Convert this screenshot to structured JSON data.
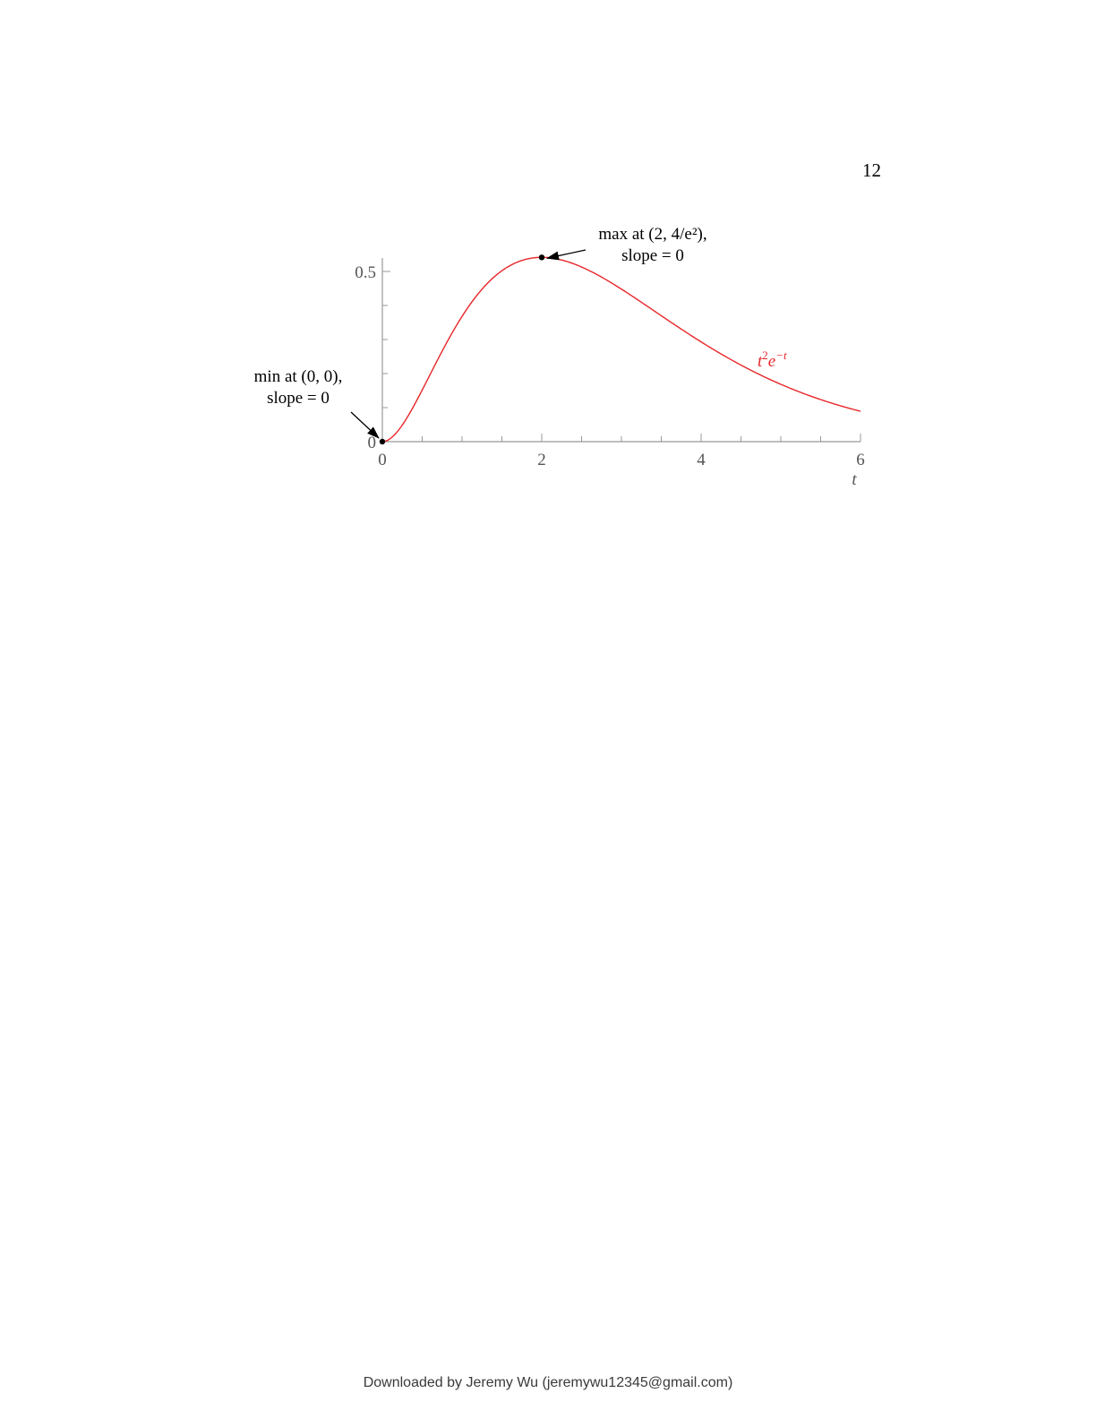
{
  "page": {
    "number": "12",
    "footer": "Downloaded by Jeremy Wu (jeremywu12345@gmail.com)"
  },
  "chart_data": {
    "type": "line",
    "function": "t^2 e^{-t}",
    "series": [
      {
        "name": "t²e⁻ᵗ",
        "color": "#e8262a"
      }
    ],
    "xlabel": "t",
    "ylabel": "",
    "xlim": [
      0,
      6
    ],
    "ylim": [
      0,
      0.5
    ],
    "x_ticks": [
      {
        "value": 0,
        "label": "0"
      },
      {
        "value": 2,
        "label": "2"
      },
      {
        "value": 4,
        "label": "4"
      },
      {
        "value": 6,
        "label": "6"
      }
    ],
    "x_minor_step": 0.5,
    "y_ticks": [
      {
        "value": 0,
        "label": "0"
      },
      {
        "value": 0.5,
        "label": "0.5"
      }
    ],
    "y_minor_step": 0.1,
    "grid": false,
    "axis_color": "#999999",
    "annotations": [
      {
        "id": "min",
        "point": [
          0,
          0
        ],
        "lines": [
          "min at (0, 0),",
          "slope = 0"
        ]
      },
      {
        "id": "max",
        "point": [
          2,
          0.5413
        ],
        "lines": [
          "max at (2, 4/e²),",
          "slope = 0"
        ]
      }
    ]
  }
}
